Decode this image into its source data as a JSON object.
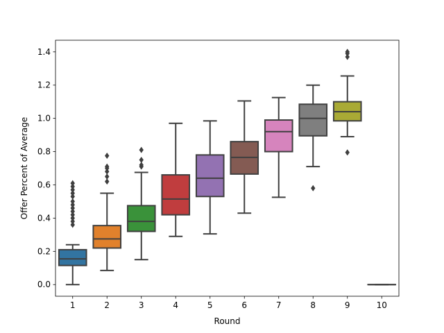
{
  "chart_data": {
    "type": "box",
    "title": "",
    "xlabel": "Round",
    "ylabel": "Offer Percent of Average",
    "ylim": [
      -0.07,
      1.47
    ],
    "yticks": [
      "0.0",
      "0.2",
      "0.4",
      "0.6",
      "0.8",
      "1.0",
      "1.2",
      "1.4"
    ],
    "ytick_values": [
      0,
      0.2,
      0.4,
      0.6,
      0.8,
      1.0,
      1.2,
      1.4
    ],
    "categories": [
      "1",
      "2",
      "3",
      "4",
      "5",
      "6",
      "7",
      "8",
      "9",
      "10"
    ],
    "colors": [
      "#3274a1",
      "#e1812c",
      "#3a923a",
      "#c03d3e",
      "#9372b2",
      "#845b53",
      "#d684bd",
      "#7f7f7f",
      "#a9aa35",
      "#2eabb8"
    ],
    "boxes": [
      {
        "whislo": 0.0,
        "q1": 0.115,
        "med": 0.155,
        "q3": 0.21,
        "whishi": 0.24,
        "fliers": [
          0.36,
          0.38,
          0.4,
          0.42,
          0.44,
          0.46,
          0.48,
          0.5,
          0.53,
          0.55,
          0.57,
          0.59,
          0.61
        ]
      },
      {
        "whislo": 0.085,
        "q1": 0.22,
        "med": 0.275,
        "q3": 0.355,
        "whishi": 0.55,
        "fliers": [
          0.62,
          0.65,
          0.68,
          0.7,
          0.71,
          0.775
        ]
      },
      {
        "whislo": 0.15,
        "q1": 0.32,
        "med": 0.38,
        "q3": 0.475,
        "whishi": 0.675,
        "fliers": [
          0.71,
          0.72,
          0.75,
          0.81
        ]
      },
      {
        "whislo": 0.29,
        "q1": 0.42,
        "med": 0.515,
        "q3": 0.66,
        "whishi": 0.97,
        "fliers": []
      },
      {
        "whislo": 0.305,
        "q1": 0.53,
        "med": 0.64,
        "q3": 0.78,
        "whishi": 0.985,
        "fliers": []
      },
      {
        "whislo": 0.43,
        "q1": 0.665,
        "med": 0.765,
        "q3": 0.86,
        "whishi": 1.105,
        "fliers": []
      },
      {
        "whislo": 0.525,
        "q1": 0.8,
        "med": 0.92,
        "q3": 0.99,
        "whishi": 1.125,
        "fliers": []
      },
      {
        "whislo": 0.71,
        "q1": 0.895,
        "med": 1.0,
        "q3": 1.085,
        "whishi": 1.2,
        "fliers": [
          0.58
        ]
      },
      {
        "whislo": 0.89,
        "q1": 0.985,
        "med": 1.04,
        "q3": 1.1,
        "whishi": 1.255,
        "fliers": [
          0.795,
          1.37,
          1.39,
          1.4
        ]
      },
      {
        "whislo": 0.0,
        "q1": 0.0,
        "med": 0.0,
        "q3": 0.0,
        "whishi": 0.0,
        "fliers": []
      }
    ]
  }
}
